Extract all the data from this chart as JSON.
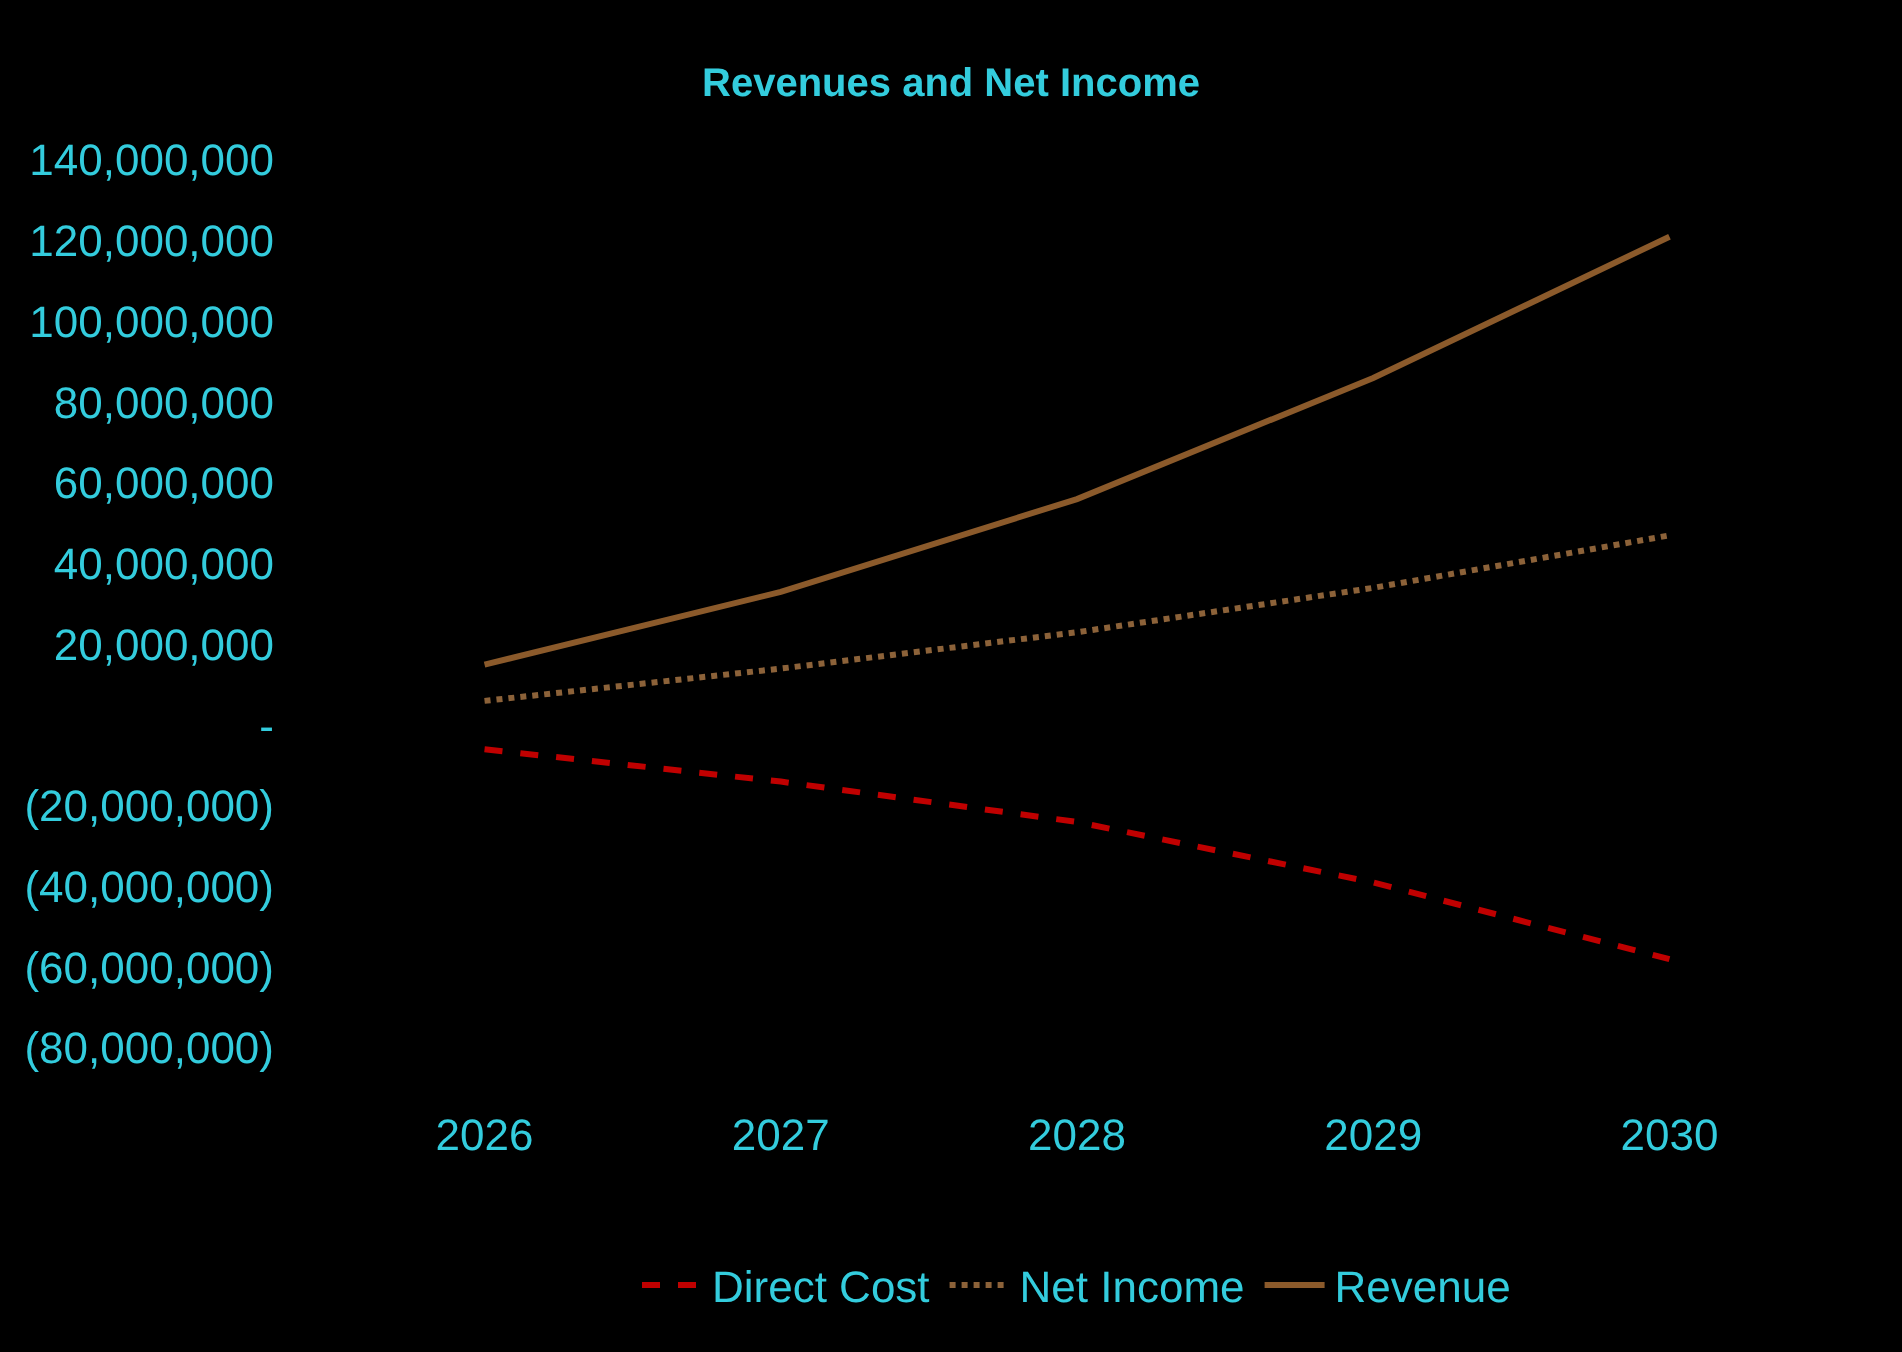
{
  "chart_data": {
    "type": "line",
    "title": "Revenues and Net Income",
    "categories": [
      "2026",
      "2027",
      "2028",
      "2029",
      "2030"
    ],
    "series": [
      {
        "name": "Direct Cost",
        "color": "#c00000",
        "line_style": "dashed",
        "values": [
          -6000000,
          -14000000,
          -24000000,
          -39000000,
          -58000000
        ]
      },
      {
        "name": "Net Income",
        "color": "#8c6239",
        "line_style": "dotted",
        "values": [
          6000000,
          14000000,
          23000000,
          34000000,
          47000000
        ]
      },
      {
        "name": "Revenue",
        "color": "#8b5a2b",
        "line_style": "solid",
        "values": [
          15000000,
          33000000,
          56000000,
          86000000,
          121000000
        ]
      }
    ],
    "ylim": [
      -80000000,
      140000000
    ],
    "yticks": [
      {
        "value": -80000000,
        "label": "(80,000,000)"
      },
      {
        "value": -60000000,
        "label": "(60,000,000)"
      },
      {
        "value": -40000000,
        "label": "(40,000,000)"
      },
      {
        "value": -20000000,
        "label": "(20,000,000)"
      },
      {
        "value": 0,
        "label": "-"
      },
      {
        "value": 20000000,
        "label": "20,000,000"
      },
      {
        "value": 40000000,
        "label": "40,000,000"
      },
      {
        "value": 60000000,
        "label": "60,000,000"
      },
      {
        "value": 80000000,
        "label": "80,000,000"
      },
      {
        "value": 100000000,
        "label": "100,000,000"
      },
      {
        "value": 120000000,
        "label": "120,000,000"
      },
      {
        "value": 140000000,
        "label": "140,000,000"
      }
    ],
    "grid": false,
    "legend": "bottom",
    "marker": "none"
  }
}
